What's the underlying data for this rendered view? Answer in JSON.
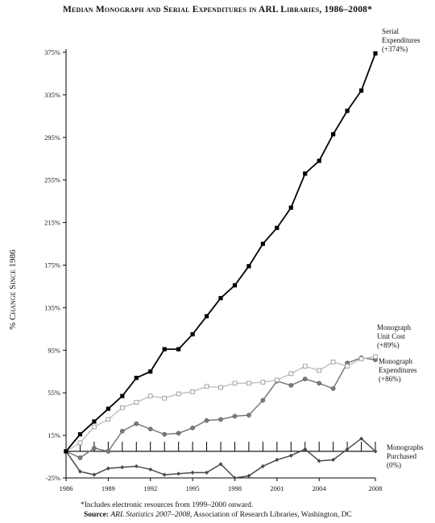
{
  "chart_data": {
    "type": "line",
    "title": "Median Monograph and Serial Expenditures in ARL Libraries, 1986–2008*",
    "ylabel": "% Change Since 1986",
    "xlabel": "",
    "xlim": [
      1986,
      2008
    ],
    "ylim": [
      -25,
      385
    ],
    "yticks": [
      -25,
      15,
      55,
      95,
      135,
      175,
      215,
      255,
      295,
      335,
      375
    ],
    "ytick_labels": [
      "-25%",
      "15%",
      "55%",
      "95%",
      "135%",
      "175%",
      "215%",
      "255%",
      "295%",
      "335%",
      "375%"
    ],
    "xticks": [
      1986,
      1989,
      1992,
      1995,
      1998,
      2001,
      2004,
      2008
    ],
    "xtick_labels": [
      "1986",
      "1989",
      "1992",
      "1995",
      "1998",
      "2001",
      "2004",
      "2008"
    ],
    "x": [
      1986,
      1987,
      1988,
      1989,
      1990,
      1991,
      1992,
      1993,
      1994,
      1995,
      1996,
      1997,
      1998,
      1999,
      2000,
      2001,
      2002,
      2003,
      2004,
      2005,
      2006,
      2007,
      2008
    ],
    "grid": false,
    "series": [
      {
        "name": "Serial Expenditures (+374%)",
        "label_lines": [
          "Serial",
          "Expenditures",
          "(+374%)"
        ],
        "values": [
          0,
          16,
          28,
          40,
          52,
          69,
          75,
          96,
          96,
          110,
          127,
          144,
          156,
          174,
          195,
          210,
          229,
          261,
          273,
          298,
          320,
          339,
          374
        ],
        "color": "#000000",
        "marker": "square-filled"
      },
      {
        "name": "Monograph Unit Cost (+89%)",
        "label_lines": [
          "Monograph",
          "Unit Cost",
          "(+89%)"
        ],
        "values": [
          0,
          8,
          23,
          30,
          41,
          46,
          52,
          50,
          54,
          56,
          61,
          60,
          64,
          64,
          65,
          67,
          73,
          80,
          76,
          84,
          80,
          87,
          89
        ],
        "color": "#c4c4c4",
        "marker": "square-open"
      },
      {
        "name": "Monograph Expenditures (+86%)",
        "label_lines": [
          "Monograph",
          "Expenditures",
          "(+86%)"
        ],
        "values": [
          0,
          -6,
          3,
          0,
          19,
          26,
          21,
          16,
          17,
          22,
          29,
          30,
          33,
          34,
          48,
          66,
          62,
          68,
          64,
          59,
          83,
          88,
          86
        ],
        "color": "#7a7a7a",
        "marker": "circle-filled"
      },
      {
        "name": "Monographs Purchased (0%)",
        "label_lines": [
          "Monographs",
          "Purchased",
          "(0%)"
        ],
        "values": [
          0,
          -19,
          -22,
          -16,
          -15,
          -14,
          -17,
          -22,
          -21,
          -20,
          -20,
          -12,
          -25,
          -23,
          -14,
          -8,
          -4,
          2,
          -9,
          -8,
          2,
          12,
          0
        ],
        "color": "#4a4a4a",
        "marker": "diamond-filled"
      }
    ],
    "annotations": [
      "*Includes electronic resources from 1999–2000 onward.",
      "Source: ARL Statistics 2007–2008, Association of Research Libraries, Washington, DC"
    ]
  },
  "footnote": "*Includes electronic resources from 1999–2000 onward.",
  "source": {
    "label": "Source:",
    "italic": "ARL Statistics 2007–2008",
    "rest": ", Association of Research Libraries, Washington, DC"
  }
}
